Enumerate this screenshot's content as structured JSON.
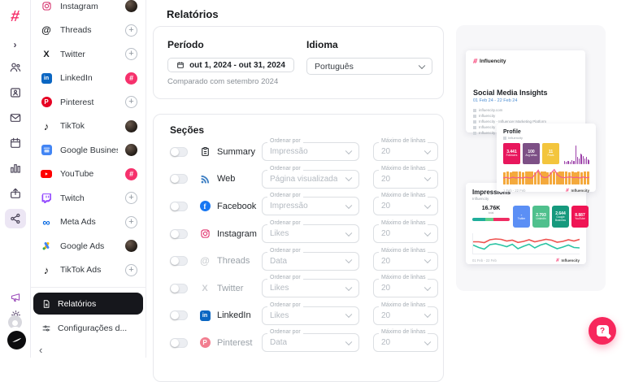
{
  "brand": {
    "accent": "#f6316c",
    "logo_glyph": "#",
    "name": "Influencity"
  },
  "rail": {
    "icons": [
      "influencity-logo",
      "expand-chevron",
      "team",
      "contact-card",
      "inbox",
      "calendar",
      "analytics",
      "export",
      "connections",
      "megaphone",
      "gear",
      "user-avatar",
      "brand-avatar"
    ],
    "expand_glyph": "›"
  },
  "sidebar": {
    "channels": [
      {
        "label": "Instagram",
        "icon": "instagram-icon",
        "right": "avatar-photo"
      },
      {
        "label": "Threads",
        "icon": "threads-icon",
        "right": "plus"
      },
      {
        "label": "Twitter",
        "icon": "x-icon",
        "right": "plus"
      },
      {
        "label": "LinkedIn",
        "icon": "linkedin-icon",
        "right": "avatar-logo"
      },
      {
        "label": "Pinterest",
        "icon": "pinterest-icon",
        "right": "plus"
      },
      {
        "label": "TikTok",
        "icon": "tiktok-icon",
        "right": "avatar-photo"
      },
      {
        "label": "Google Business...",
        "icon": "google-business-icon",
        "right": "avatar-photo"
      },
      {
        "label": "YouTube",
        "icon": "youtube-icon",
        "right": "avatar-logo"
      },
      {
        "label": "Twitch",
        "icon": "twitch-icon",
        "right": "plus"
      },
      {
        "label": "Meta Ads",
        "icon": "meta-icon",
        "right": "plus"
      },
      {
        "label": "Google Ads",
        "icon": "google-ads-icon",
        "right": "avatar-photo"
      },
      {
        "label": "TikTok Ads",
        "icon": "tiktok-icon",
        "right": "plus"
      }
    ],
    "plus_glyph": "+",
    "avatar_logo_glyph": "#",
    "reports_label": "Relatórios",
    "settings_label": "Configurações d...",
    "collapse_glyph": "‹"
  },
  "main": {
    "title": "Relatórios",
    "period": {
      "label": "Período",
      "value": "out 1, 2024 - out 31, 2024",
      "helper": "Comparado com setembro 2024"
    },
    "language": {
      "label": "Idioma",
      "value": "Português"
    },
    "sections": {
      "title": "Seções",
      "order_label": "Ordenar por",
      "max_label": "Máximo de linhas",
      "rows": [
        {
          "label": "Summary",
          "order": "Impressão",
          "max": "20"
        },
        {
          "label": "Web",
          "order": "Página visualizada",
          "max": "20"
        },
        {
          "label": "Facebook",
          "order": "Impressão",
          "max": "20"
        },
        {
          "label": "Instagram",
          "order": "Likes",
          "max": "20"
        },
        {
          "label": "Threads",
          "order": "Data",
          "max": "20"
        },
        {
          "label": "Twitter",
          "order": "Likes",
          "max": "20"
        },
        {
          "label": "LinkedIn",
          "order": "Likes",
          "max": "20"
        },
        {
          "label": "Pinterest",
          "order": "Data",
          "max": "20"
        }
      ]
    }
  },
  "preview": {
    "cardA": {
      "brand": "Influencity",
      "title": "Social Media Insights",
      "date_range": "01 Feb 24 - 22 Feb 24",
      "items": [
        "influencity.com",
        "Influencity",
        "Influencity - Influencer Marketing Platform",
        "Influencity",
        "Influencity - Influencer Marketing"
      ]
    },
    "profile": {
      "title": "Profile",
      "tag": "Influencity",
      "tiles": [
        {
          "value": "3.441",
          "label": "Followers",
          "color": "#e8175d"
        },
        {
          "value": "100",
          "label": "Avg views",
          "color": "#7d5086"
        },
        {
          "value": "11",
          "label": "Posts",
          "color": "#f3c53d"
        }
      ],
      "spark": {
        "values": [
          16,
          13,
          18,
          15,
          13,
          20,
          17,
          15,
          95,
          38,
          30,
          55,
          48,
          40,
          30,
          36,
          26,
          20
        ],
        "color": "#9b3fa8"
      },
      "bars": {
        "values": [
          76,
          80,
          74,
          80,
          78,
          80,
          77,
          80,
          78,
          80,
          77,
          80,
          78,
          80,
          77,
          76,
          80,
          77,
          80,
          78,
          80,
          77,
          80,
          76,
          80,
          77,
          80,
          78
        ],
        "color": "#f4a93c"
      },
      "line": {
        "values": [
          40,
          44,
          38,
          45,
          40,
          43,
          40,
          45,
          42,
          40,
          62,
          88,
          50,
          42,
          46,
          70,
          92,
          60,
          46,
          42,
          44,
          47,
          42,
          45,
          40,
          46,
          42,
          44
        ],
        "color": "#f25b8f",
        "w": 1.2
      },
      "footer_left": "1 Feb - 22 Feb",
      "footer_brand": "Influencity"
    },
    "impressions": {
      "title": "Impressions",
      "subtitle": "Influencity",
      "stat": "16.76K",
      "stat_sub": "total",
      "stack": {
        "segments": [
          {
            "color": "#1fae9b",
            "pct": 34
          },
          {
            "color": "#63d08a",
            "pct": 22
          },
          {
            "color": "#ef2d63",
            "pct": 44
          }
        ]
      },
      "tiles": [
        {
          "value": "-",
          "label": "Twitter",
          "color": "#5b8ff5"
        },
        {
          "value": "2.793",
          "label": "LinkedIn",
          "color": "#4fc08d"
        },
        {
          "value": "2.644",
          "label": "Google Business",
          "color": "#16997d"
        },
        {
          "value": "8.887",
          "label": "YouTube",
          "color": "#ef1454"
        }
      ],
      "line_red": {
        "values": [
          58,
          58,
          54,
          68,
          72,
          70,
          62,
          66,
          55,
          60,
          68,
          58,
          64,
          70,
          66,
          56,
          60,
          68,
          62,
          70
        ],
        "color": "#ef5350",
        "w": 1.6
      },
      "line_teal": {
        "values": [
          42,
          30,
          22,
          44,
          48,
          42,
          34,
          46,
          24,
          36,
          46,
          28,
          42,
          50,
          36,
          24,
          32,
          42,
          30,
          28
        ],
        "color": "#2bc4a4",
        "w": 1.6
      },
      "footer_left": "01 Feb - 22 Feb",
      "footer_brand": "Influencity"
    }
  },
  "fab": {
    "icon": "help-chat",
    "glyph": "?"
  }
}
